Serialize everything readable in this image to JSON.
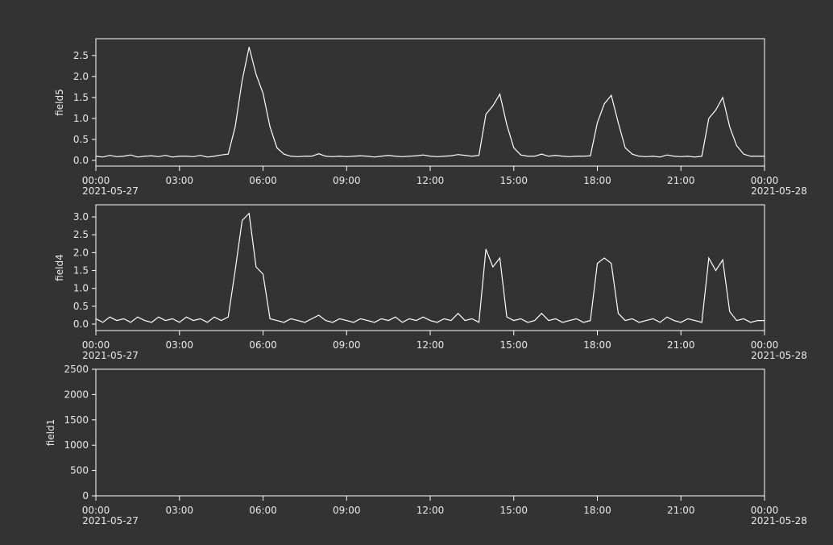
{
  "chart_data": [
    {
      "type": "line",
      "ylabel": "field5",
      "xlim": [
        "2021-05-27 00:00",
        "2021-05-28 00:00"
      ],
      "xticks": [
        {
          "value": "2021-05-27 00:00",
          "label": "00:00",
          "sublabel": "2021-05-27"
        },
        {
          "value": "2021-05-27 03:00",
          "label": "03:00"
        },
        {
          "value": "2021-05-27 06:00",
          "label": "06:00"
        },
        {
          "value": "2021-05-27 09:00",
          "label": "09:00"
        },
        {
          "value": "2021-05-27 12:00",
          "label": "12:00"
        },
        {
          "value": "2021-05-27 15:00",
          "label": "15:00"
        },
        {
          "value": "2021-05-27 18:00",
          "label": "18:00"
        },
        {
          "value": "2021-05-27 21:00",
          "label": "21:00"
        },
        {
          "value": "2021-05-28 00:00",
          "label": "00:00",
          "sublabel": "2021-05-28"
        }
      ],
      "ylim": [
        -0.135,
        2.9
      ],
      "yticks": [
        {
          "value": 0,
          "label": "0.0"
        },
        0.5,
        {
          "value": 1,
          "label": "1.0"
        },
        1.5,
        {
          "value": 2,
          "label": "2.0"
        },
        2.5
      ],
      "x": [
        "2021-05-27 00:00",
        "2021-05-27 00:15",
        "2021-05-27 00:30",
        "2021-05-27 00:45",
        "2021-05-27 01:00",
        "2021-05-27 01:15",
        "2021-05-27 01:30",
        "2021-05-27 01:45",
        "2021-05-27 02:00",
        "2021-05-27 02:15",
        "2021-05-27 02:30",
        "2021-05-27 02:45",
        "2021-05-27 03:00",
        "2021-05-27 03:15",
        "2021-05-27 03:30",
        "2021-05-27 03:45",
        "2021-05-27 04:00",
        "2021-05-27 04:15",
        "2021-05-27 04:30",
        "2021-05-27 04:45",
        "2021-05-27 05:00",
        "2021-05-27 05:15",
        "2021-05-27 05:30",
        "2021-05-27 05:45",
        "2021-05-27 06:00",
        "2021-05-27 06:15",
        "2021-05-27 06:30",
        "2021-05-27 06:45",
        "2021-05-27 07:00",
        "2021-05-27 07:15",
        "2021-05-27 07:30",
        "2021-05-27 07:45",
        "2021-05-27 08:00",
        "2021-05-27 08:15",
        "2021-05-27 08:30",
        "2021-05-27 08:45",
        "2021-05-27 09:00",
        "2021-05-27 09:15",
        "2021-05-27 09:30",
        "2021-05-27 09:45",
        "2021-05-27 10:00",
        "2021-05-27 10:15",
        "2021-05-27 10:30",
        "2021-05-27 10:45",
        "2021-05-27 11:00",
        "2021-05-27 11:15",
        "2021-05-27 11:30",
        "2021-05-27 11:45",
        "2021-05-27 12:00",
        "2021-05-27 12:15",
        "2021-05-27 12:30",
        "2021-05-27 12:45",
        "2021-05-27 13:00",
        "2021-05-27 13:15",
        "2021-05-27 13:30",
        "2021-05-27 13:45",
        "2021-05-27 14:00",
        "2021-05-27 14:15",
        "2021-05-27 14:30",
        "2021-05-27 14:45",
        "2021-05-27 15:00",
        "2021-05-27 15:15",
        "2021-05-27 15:30",
        "2021-05-27 15:45",
        "2021-05-27 16:00",
        "2021-05-27 16:15",
        "2021-05-27 16:30",
        "2021-05-27 16:45",
        "2021-05-27 17:00",
        "2021-05-27 17:15",
        "2021-05-27 17:30",
        "2021-05-27 17:45",
        "2021-05-27 18:00",
        "2021-05-27 18:15",
        "2021-05-27 18:30",
        "2021-05-27 18:45",
        "2021-05-27 19:00",
        "2021-05-27 19:15",
        "2021-05-27 19:30",
        "2021-05-27 19:45",
        "2021-05-27 20:00",
        "2021-05-27 20:15",
        "2021-05-27 20:30",
        "2021-05-27 20:45",
        "2021-05-27 21:00",
        "2021-05-27 21:15",
        "2021-05-27 21:30",
        "2021-05-27 21:45",
        "2021-05-27 22:00",
        "2021-05-27 22:15",
        "2021-05-27 22:30",
        "2021-05-27 22:45",
        "2021-05-27 23:00",
        "2021-05-27 23:15",
        "2021-05-27 23:30",
        "2021-05-27 23:45",
        "2021-05-28 00:00"
      ],
      "series": [
        {
          "name": "field5",
          "color": "#ffffff",
          "values": [
            0.1,
            0.08,
            0.12,
            0.09,
            0.1,
            0.13,
            0.08,
            0.1,
            0.11,
            0.09,
            0.12,
            0.08,
            0.1,
            0.1,
            0.09,
            0.12,
            0.08,
            0.1,
            0.13,
            0.15,
            0.8,
            1.9,
            2.7,
            2.05,
            1.6,
            0.8,
            0.3,
            0.15,
            0.1,
            0.09,
            0.1,
            0.1,
            0.16,
            0.1,
            0.09,
            0.1,
            0.09,
            0.1,
            0.11,
            0.1,
            0.08,
            0.1,
            0.12,
            0.1,
            0.09,
            0.1,
            0.11,
            0.13,
            0.1,
            0.09,
            0.1,
            0.11,
            0.14,
            0.12,
            0.1,
            0.12,
            1.1,
            1.3,
            1.58,
            0.85,
            0.3,
            0.13,
            0.1,
            0.1,
            0.15,
            0.1,
            0.12,
            0.1,
            0.09,
            0.1,
            0.1,
            0.11,
            0.9,
            1.35,
            1.55,
            0.9,
            0.3,
            0.15,
            0.1,
            0.09,
            0.1,
            0.08,
            0.13,
            0.1,
            0.09,
            0.1,
            0.08,
            0.1,
            1.0,
            1.2,
            1.5,
            0.8,
            0.35,
            0.15,
            0.1,
            0.1,
            0.1
          ]
        }
      ]
    },
    {
      "type": "line",
      "ylabel": "field4",
      "xlim": [
        "2021-05-27 00:00",
        "2021-05-28 00:00"
      ],
      "xticks": [
        {
          "value": "2021-05-27 00:00",
          "label": "00:00",
          "sublabel": "2021-05-27"
        },
        {
          "value": "2021-05-27 03:00",
          "label": "03:00"
        },
        {
          "value": "2021-05-27 06:00",
          "label": "06:00"
        },
        {
          "value": "2021-05-27 09:00",
          "label": "09:00"
        },
        {
          "value": "2021-05-27 12:00",
          "label": "12:00"
        },
        {
          "value": "2021-05-27 15:00",
          "label": "15:00"
        },
        {
          "value": "2021-05-27 18:00",
          "label": "18:00"
        },
        {
          "value": "2021-05-27 21:00",
          "label": "21:00"
        },
        {
          "value": "2021-05-28 00:00",
          "label": "00:00",
          "sublabel": "2021-05-28"
        }
      ],
      "ylim": [
        -0.18,
        3.34
      ],
      "yticks": [
        {
          "value": 0,
          "label": "0.0"
        },
        0.5,
        {
          "value": 1,
          "label": "1.0"
        },
        1.5,
        {
          "value": 2,
          "label": "2.0"
        },
        2.5,
        {
          "value": 3,
          "label": "3.0"
        }
      ],
      "x": [
        "2021-05-27 00:00",
        "2021-05-27 00:15",
        "2021-05-27 00:30",
        "2021-05-27 00:45",
        "2021-05-27 01:00",
        "2021-05-27 01:15",
        "2021-05-27 01:30",
        "2021-05-27 01:45",
        "2021-05-27 02:00",
        "2021-05-27 02:15",
        "2021-05-27 02:30",
        "2021-05-27 02:45",
        "2021-05-27 03:00",
        "2021-05-27 03:15",
        "2021-05-27 03:30",
        "2021-05-27 03:45",
        "2021-05-27 04:00",
        "2021-05-27 04:15",
        "2021-05-27 04:30",
        "2021-05-27 04:45",
        "2021-05-27 05:00",
        "2021-05-27 05:15",
        "2021-05-27 05:30",
        "2021-05-27 05:45",
        "2021-05-27 06:00",
        "2021-05-27 06:15",
        "2021-05-27 06:30",
        "2021-05-27 06:45",
        "2021-05-27 07:00",
        "2021-05-27 07:15",
        "2021-05-27 07:30",
        "2021-05-27 07:45",
        "2021-05-27 08:00",
        "2021-05-27 08:15",
        "2021-05-27 08:30",
        "2021-05-27 08:45",
        "2021-05-27 09:00",
        "2021-05-27 09:15",
        "2021-05-27 09:30",
        "2021-05-27 09:45",
        "2021-05-27 10:00",
        "2021-05-27 10:15",
        "2021-05-27 10:30",
        "2021-05-27 10:45",
        "2021-05-27 11:00",
        "2021-05-27 11:15",
        "2021-05-27 11:30",
        "2021-05-27 11:45",
        "2021-05-27 12:00",
        "2021-05-27 12:15",
        "2021-05-27 12:30",
        "2021-05-27 12:45",
        "2021-05-27 13:00",
        "2021-05-27 13:15",
        "2021-05-27 13:30",
        "2021-05-27 13:45",
        "2021-05-27 14:00",
        "2021-05-27 14:15",
        "2021-05-27 14:30",
        "2021-05-27 14:45",
        "2021-05-27 15:00",
        "2021-05-27 15:15",
        "2021-05-27 15:30",
        "2021-05-27 15:45",
        "2021-05-27 16:00",
        "2021-05-27 16:15",
        "2021-05-27 16:30",
        "2021-05-27 16:45",
        "2021-05-27 17:00",
        "2021-05-27 17:15",
        "2021-05-27 17:30",
        "2021-05-27 17:45",
        "2021-05-27 18:00",
        "2021-05-27 18:15",
        "2021-05-27 18:30",
        "2021-05-27 18:45",
        "2021-05-27 19:00",
        "2021-05-27 19:15",
        "2021-05-27 19:30",
        "2021-05-27 19:45",
        "2021-05-27 20:00",
        "2021-05-27 20:15",
        "2021-05-27 20:30",
        "2021-05-27 20:45",
        "2021-05-27 21:00",
        "2021-05-27 21:15",
        "2021-05-27 21:30",
        "2021-05-27 21:45",
        "2021-05-27 22:00",
        "2021-05-27 22:15",
        "2021-05-27 22:30",
        "2021-05-27 22:45",
        "2021-05-27 23:00",
        "2021-05-27 23:15",
        "2021-05-27 23:30",
        "2021-05-27 23:45",
        "2021-05-28 00:00"
      ],
      "series": [
        {
          "name": "field4",
          "color": "#ffffff",
          "values": [
            0.15,
            0.05,
            0.2,
            0.1,
            0.15,
            0.05,
            0.2,
            0.1,
            0.05,
            0.2,
            0.1,
            0.15,
            0.05,
            0.2,
            0.1,
            0.15,
            0.05,
            0.2,
            0.1,
            0.2,
            1.5,
            2.9,
            3.1,
            1.6,
            1.4,
            0.15,
            0.1,
            0.05,
            0.15,
            0.1,
            0.05,
            0.15,
            0.25,
            0.1,
            0.05,
            0.15,
            0.1,
            0.05,
            0.15,
            0.1,
            0.05,
            0.15,
            0.1,
            0.2,
            0.05,
            0.15,
            0.1,
            0.2,
            0.1,
            0.05,
            0.15,
            0.1,
            0.3,
            0.1,
            0.15,
            0.05,
            2.1,
            1.6,
            1.85,
            0.2,
            0.1,
            0.15,
            0.05,
            0.1,
            0.3,
            0.1,
            0.15,
            0.05,
            0.1,
            0.15,
            0.05,
            0.1,
            1.7,
            1.85,
            1.7,
            0.3,
            0.1,
            0.15,
            0.05,
            0.1,
            0.15,
            0.05,
            0.2,
            0.1,
            0.05,
            0.15,
            0.1,
            0.05,
            1.85,
            1.5,
            1.8,
            0.35,
            0.1,
            0.15,
            0.05,
            0.1,
            0.1
          ]
        }
      ]
    },
    {
      "type": "line",
      "ylabel": "field1",
      "xlim": [
        "2021-05-27 00:00",
        "2021-05-28 00:00"
      ],
      "xticks": [
        {
          "value": "2021-05-27 00:00",
          "label": "00:00",
          "sublabel": "2021-05-27"
        },
        {
          "value": "2021-05-27 03:00",
          "label": "03:00"
        },
        {
          "value": "2021-05-27 06:00",
          "label": "06:00"
        },
        {
          "value": "2021-05-27 09:00",
          "label": "09:00"
        },
        {
          "value": "2021-05-27 12:00",
          "label": "12:00"
        },
        {
          "value": "2021-05-27 15:00",
          "label": "15:00"
        },
        {
          "value": "2021-05-27 18:00",
          "label": "18:00"
        },
        {
          "value": "2021-05-27 21:00",
          "label": "21:00"
        },
        {
          "value": "2021-05-28 00:00",
          "label": "00:00",
          "sublabel": "2021-05-28"
        }
      ],
      "ylim": [
        0,
        2500
      ],
      "yticks": [
        0,
        500,
        1000,
        1500,
        2000,
        2500
      ]
    }
  ]
}
